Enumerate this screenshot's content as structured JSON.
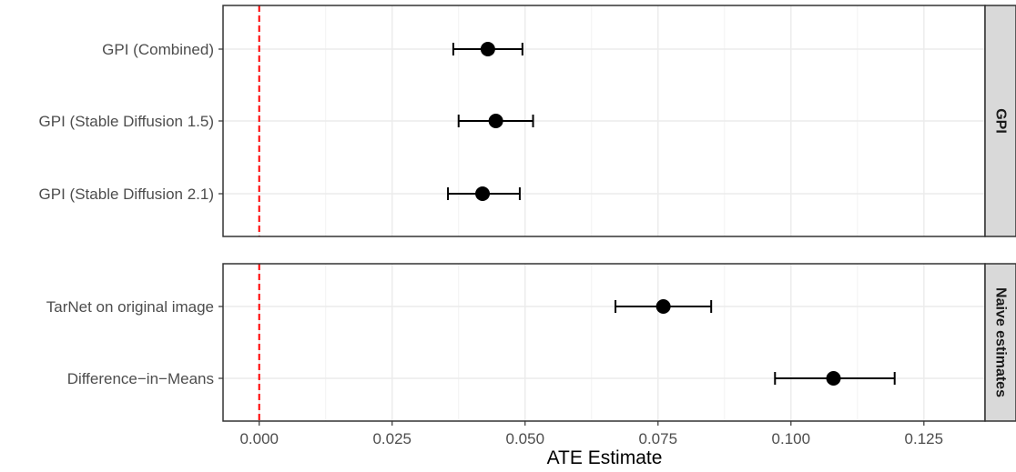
{
  "chart_data": {
    "type": "scatter",
    "xlabel": "ATE Estimate",
    "xlim": [
      -0.0068,
      0.1365
    ],
    "x_ticks": [
      "0.000",
      "0.025",
      "0.050",
      "0.075",
      "0.100",
      "0.125"
    ],
    "x_tick_values": [
      0,
      0.025,
      0.05,
      0.075,
      0.1,
      0.125
    ],
    "reference_line": {
      "x": 0,
      "color": "#ff0000",
      "style": "dashed"
    },
    "point_color": "#000000",
    "grid": true,
    "facets": [
      {
        "strip": "GPI",
        "points": [
          {
            "label": "GPI (Combined)",
            "estimate": 0.043,
            "lower": 0.0365,
            "upper": 0.0495
          },
          {
            "label": "GPI (Stable Diffusion 1.5)",
            "estimate": 0.0445,
            "lower": 0.0375,
            "upper": 0.0515
          },
          {
            "label": "GPI (Stable Diffusion 2.1)",
            "estimate": 0.042,
            "lower": 0.0355,
            "upper": 0.049
          }
        ]
      },
      {
        "strip": "Naive estimates",
        "points": [
          {
            "label": "TarNet on original image",
            "estimate": 0.076,
            "lower": 0.067,
            "upper": 0.085
          },
          {
            "label": "Difference−in−Means",
            "estimate": 0.108,
            "lower": 0.097,
            "upper": 0.1195
          }
        ]
      }
    ]
  }
}
